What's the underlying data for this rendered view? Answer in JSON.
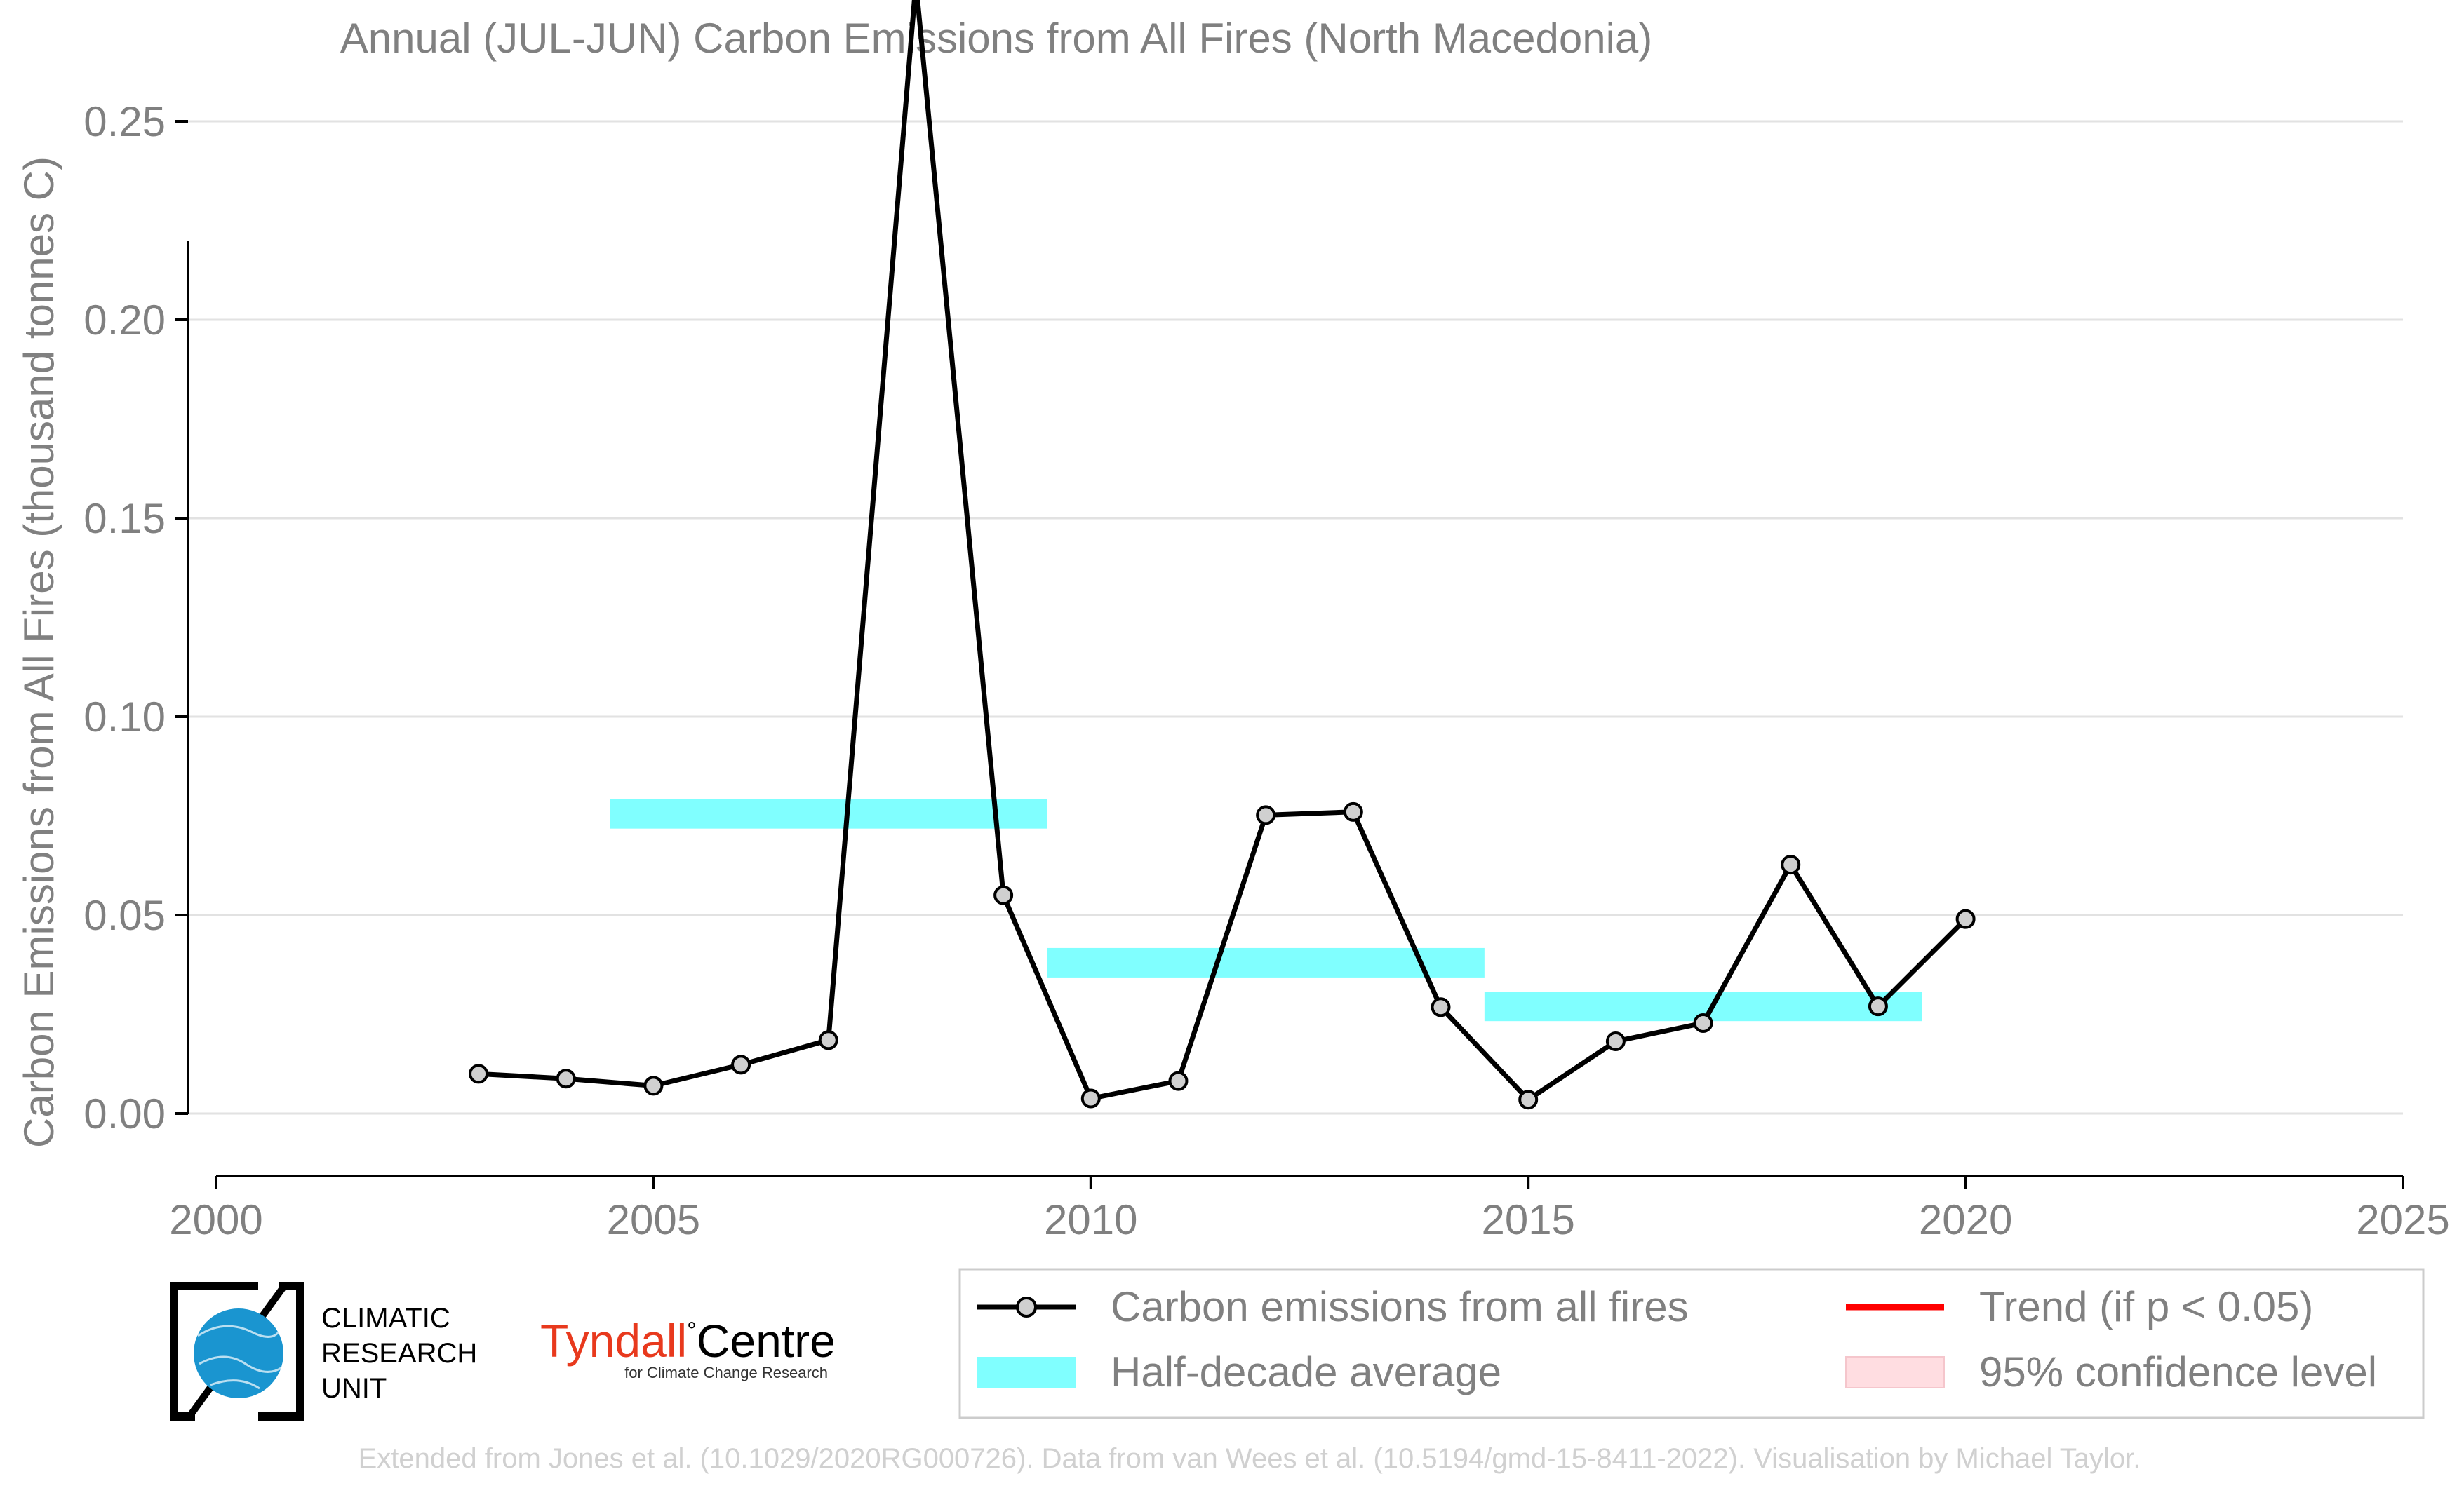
{
  "chart_data": {
    "type": "line",
    "title": "Annual (JUL-JUN) Carbon Emissions from All Fires (North Macedonia)",
    "xlabel": "",
    "ylabel": "Carbon Emissions from All Fires (thousand tonnes C)",
    "xlim": [
      2000,
      2025
    ],
    "ylim": [
      -0.018,
      0.285
    ],
    "x_ticks": [
      "2000",
      "2005",
      "2010",
      "2015",
      "2020",
      "2025"
    ],
    "y_ticks": [
      "0.00",
      "0.05",
      "0.10",
      "0.15",
      "0.20",
      "0.25"
    ],
    "grid": "horizontal",
    "series": [
      {
        "name": "Carbon emissions from all fires",
        "x": [
          2003,
          2004,
          2005,
          2006,
          2007,
          2008,
          2009,
          2010,
          2011,
          2012,
          2013,
          2014,
          2015,
          2016,
          2017,
          2018,
          2019,
          2020
        ],
        "values": [
          0.01,
          0.0088,
          0.007,
          0.0123,
          0.0185,
          0.285,
          0.055,
          0.0038,
          0.0082,
          0.0752,
          0.076,
          0.0268,
          0.0035,
          0.0182,
          0.0228,
          0.0627,
          0.027,
          0.049
        ],
        "color": "#000000",
        "marker_fill": "#d0d0d0"
      },
      {
        "name": "Half-decade average",
        "segments": [
          {
            "x_start": 2004.5,
            "x_end": 2009.5,
            "value": 0.0755
          },
          {
            "x_start": 2009.5,
            "x_end": 2014.5,
            "value": 0.038
          },
          {
            "x_start": 2014.5,
            "x_end": 2019.5,
            "value": 0.027
          }
        ],
        "color": "#80ffff"
      }
    ],
    "legend": {
      "position": "bottom-right",
      "entries": [
        {
          "label": "Carbon emissions from all fires",
          "kind": "line-marker",
          "color": "#000000"
        },
        {
          "label": "Trend (if p < 0.05)",
          "kind": "line",
          "color": "#ff0000"
        },
        {
          "label": "Half-decade average",
          "kind": "band",
          "color": "#80ffff"
        },
        {
          "label": "95% confidence level",
          "kind": "patch",
          "color": "#ffdde1"
        }
      ]
    }
  },
  "logos": {
    "cru_lines": [
      "CLIMATIC",
      "RESEARCH",
      "UNIT"
    ],
    "tyndall_name": "Tyndall",
    "tyndall_degree": "°",
    "tyndall_centre": "Centre",
    "tyndall_sub": "for Climate Change Research"
  },
  "credit": "Extended from Jones et al. (10.1029/2020RG000726). Data from van Wees et al. (10.5194/gmd-15-8411-2022). Visualisation by Michael Taylor.",
  "colors": {
    "text_gray": "#808080",
    "credit_gray": "#d0d0d0",
    "cru_blue": "#1a95d0",
    "tyndall_red": "#e8391d"
  }
}
